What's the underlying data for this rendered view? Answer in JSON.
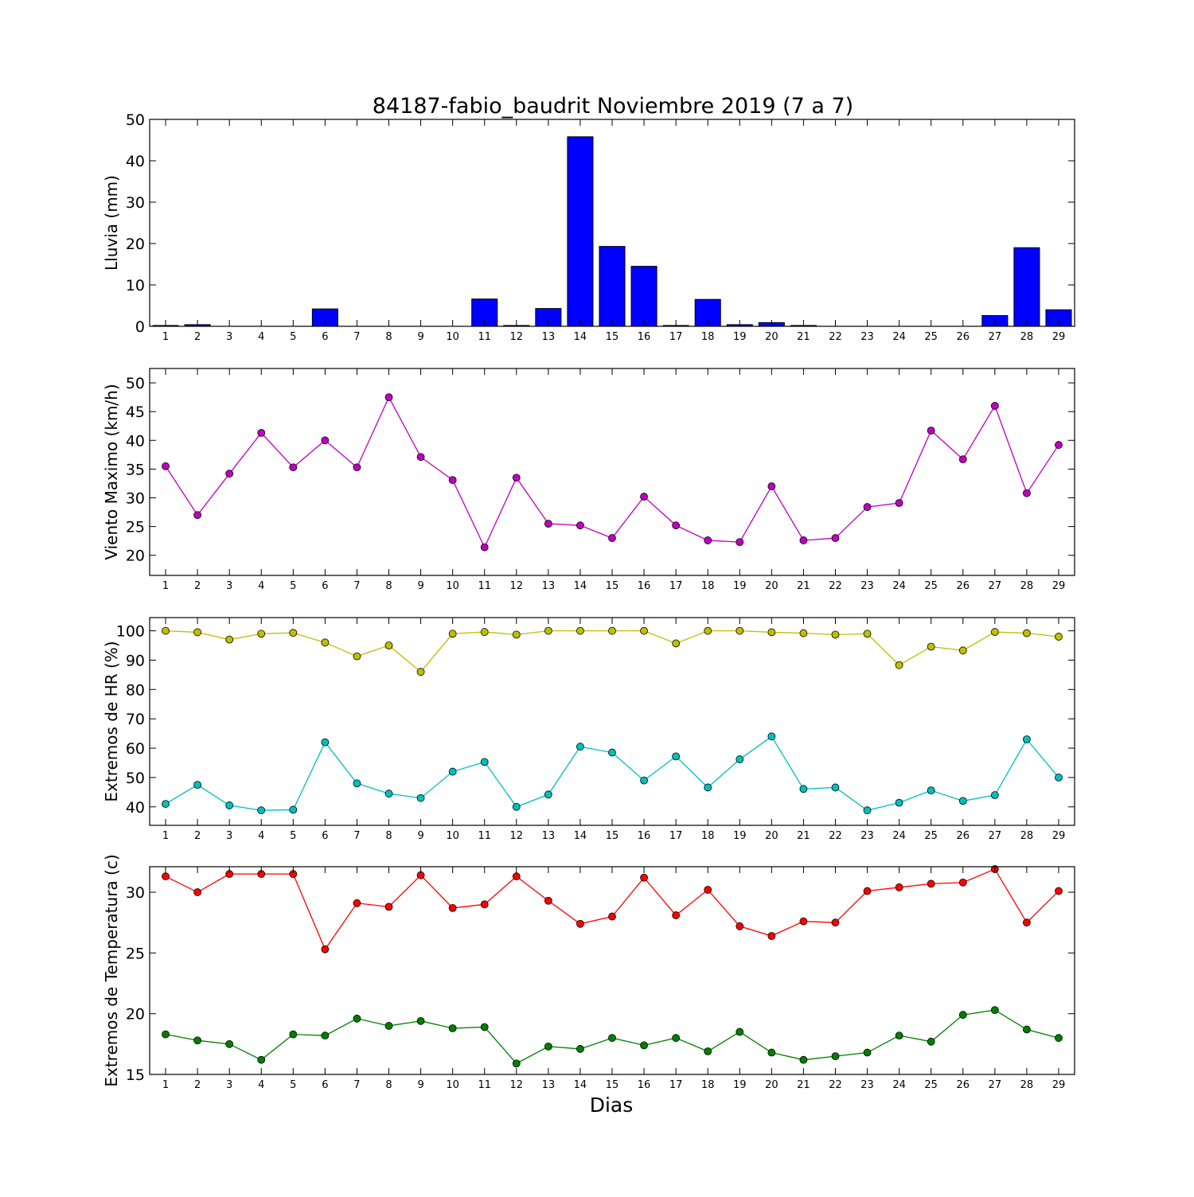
{
  "figure": {
    "title": "84187-fabio_baudrit Noviembre 2019  (7 a 7)",
    "xlabel": "Dias"
  },
  "chart_data": [
    {
      "type": "bar",
      "categories": [
        "1",
        "2",
        "3",
        "4",
        "5",
        "6",
        "7",
        "8",
        "9",
        "10",
        "11",
        "12",
        "13",
        "14",
        "15",
        "16",
        "17",
        "18",
        "19",
        "20",
        "21",
        "22",
        "23",
        "24",
        "25",
        "26",
        "27",
        "28",
        "29"
      ],
      "series": [
        {
          "color": "#0000ff",
          "values": [
            0.2,
            0.4,
            0,
            0,
            0,
            4.2,
            0,
            0,
            0,
            0,
            6.6,
            0.2,
            4.3,
            45.8,
            19.3,
            14.5,
            0.2,
            6.5,
            0.4,
            0.9,
            0.2,
            0,
            0,
            0,
            0,
            0,
            2.6,
            19.0,
            4.0
          ]
        }
      ],
      "ylabel": "Lluvia (mm)",
      "ylim": [
        0,
        50
      ],
      "yticks": [
        0,
        10,
        20,
        30,
        40,
        50
      ]
    },
    {
      "type": "line",
      "categories": [
        "1",
        "2",
        "3",
        "4",
        "5",
        "6",
        "7",
        "8",
        "9",
        "10",
        "11",
        "12",
        "13",
        "14",
        "15",
        "16",
        "17",
        "18",
        "19",
        "20",
        "21",
        "22",
        "23",
        "24",
        "25",
        "26",
        "27",
        "28",
        "29"
      ],
      "series": [
        {
          "color": "#bf00bf",
          "values": [
            35.5,
            27.0,
            34.2,
            41.3,
            35.3,
            40.0,
            35.3,
            47.5,
            37.1,
            33.1,
            21.4,
            33.5,
            25.5,
            25.2,
            23.0,
            30.2,
            25.2,
            22.6,
            22.3,
            32.0,
            22.6,
            23.0,
            28.4,
            29.1,
            41.7,
            36.7,
            46.0,
            30.8,
            39.2
          ]
        }
      ],
      "ylabel": "Viento Maximo (km/h)",
      "ylim": [
        16.5,
        52.5
      ],
      "yticks": [
        20,
        25,
        30,
        35,
        40,
        45,
        50
      ]
    },
    {
      "type": "line",
      "categories": [
        "1",
        "2",
        "3",
        "4",
        "5",
        "6",
        "7",
        "8",
        "9",
        "10",
        "11",
        "12",
        "13",
        "14",
        "15",
        "16",
        "17",
        "18",
        "19",
        "20",
        "21",
        "22",
        "23",
        "24",
        "25",
        "26",
        "27",
        "28",
        "29"
      ],
      "series": [
        {
          "color": "#bfbf00",
          "values": [
            100,
            99.5,
            97,
            99,
            99.3,
            96,
            91.3,
            95,
            86,
            99,
            99.6,
            98.7,
            100,
            100,
            100,
            100,
            95.7,
            100,
            100,
            99.5,
            99.2,
            98.7,
            99,
            88.3,
            94.6,
            93.3,
            99.6,
            99.2,
            98
          ]
        },
        {
          "color": "#00bfbf",
          "values": [
            41,
            47.5,
            40.5,
            38.8,
            39,
            62,
            48,
            44.5,
            43,
            52,
            55.3,
            40,
            44.2,
            60.5,
            58.5,
            49,
            57.2,
            46.6,
            56.2,
            64,
            46.1,
            46.6,
            38.8,
            41.4,
            45.6,
            42,
            44,
            63,
            50
          ]
        }
      ],
      "ylabel": "Extremos de HR (%)",
      "ylim": [
        33.7,
        104.5
      ],
      "yticks": [
        40,
        50,
        60,
        70,
        80,
        90,
        100
      ]
    },
    {
      "type": "line",
      "categories": [
        "1",
        "2",
        "3",
        "4",
        "5",
        "6",
        "7",
        "8",
        "9",
        "10",
        "11",
        "12",
        "13",
        "14",
        "15",
        "16",
        "17",
        "18",
        "19",
        "20",
        "21",
        "22",
        "23",
        "24",
        "25",
        "26",
        "27",
        "28",
        "29"
      ],
      "series": [
        {
          "color": "#ff0000",
          "values": [
            31.3,
            30.0,
            31.5,
            31.5,
            31.5,
            25.3,
            29.1,
            28.8,
            31.4,
            28.7,
            29.0,
            31.3,
            29.3,
            27.4,
            28.0,
            31.2,
            28.1,
            30.2,
            27.2,
            26.4,
            27.6,
            27.5,
            30.1,
            30.4,
            30.7,
            30.8,
            31.9,
            27.5,
            30.1
          ]
        },
        {
          "color": "#007f00",
          "values": [
            18.3,
            17.8,
            17.5,
            16.2,
            18.3,
            18.2,
            19.6,
            19.0,
            19.4,
            18.8,
            18.9,
            15.9,
            17.3,
            17.1,
            18.0,
            17.4,
            18.0,
            16.9,
            18.5,
            16.8,
            16.2,
            16.5,
            16.8,
            18.2,
            17.7,
            19.9,
            20.3,
            18.7,
            18.0
          ]
        }
      ],
      "ylabel": "Extremos de Temperatura (c)",
      "ylim": [
        15,
        32.1
      ],
      "yticks": [
        15,
        20,
        25,
        30
      ]
    }
  ]
}
